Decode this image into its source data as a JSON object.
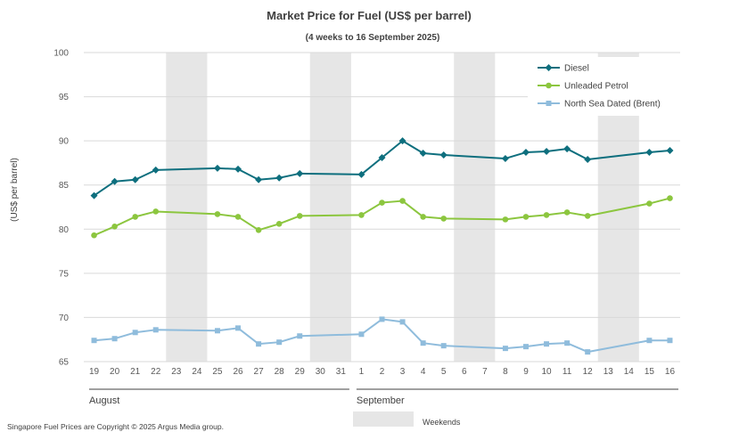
{
  "chart_data": {
    "type": "line",
    "title": "Market Price for Fuel (US$ per barrel)",
    "subtitle": "(4 weeks to 16 September 2025)",
    "ylabel": "(US$ per barrel)",
    "ylim": [
      65,
      100
    ],
    "yticks": [
      65,
      70,
      75,
      80,
      85,
      90,
      95,
      100
    ],
    "grid": true,
    "legend_position": "top-right",
    "categories": [
      "19",
      "20",
      "21",
      "22",
      "23",
      "24",
      "25",
      "26",
      "27",
      "28",
      "29",
      "30",
      "31",
      "1",
      "2",
      "3",
      "4",
      "5",
      "6",
      "7",
      "8",
      "9",
      "10",
      "11",
      "12",
      "13",
      "14",
      "15",
      "16"
    ],
    "months": [
      {
        "label": "August",
        "from": 0,
        "to": 12
      },
      {
        "label": "September",
        "from": 13,
        "to": 28
      }
    ],
    "weekend_bands": [
      [
        4,
        5
      ],
      [
        11,
        12
      ],
      [
        18,
        19
      ],
      [
        25,
        26
      ]
    ],
    "weekend_label": "Weekends",
    "series": [
      {
        "name": "Diesel",
        "color": "#0e6f7e",
        "marker": "diamond",
        "values": [
          83.8,
          85.4,
          85.6,
          86.7,
          null,
          null,
          86.9,
          86.8,
          85.6,
          85.8,
          86.3,
          null,
          null,
          86.2,
          88.1,
          90.0,
          88.6,
          88.4,
          null,
          null,
          88.0,
          88.7,
          88.8,
          89.1,
          87.9,
          null,
          null,
          88.7,
          88.9
        ]
      },
      {
        "name": "Unleaded Petrol",
        "color": "#8cc63f",
        "marker": "circle",
        "values": [
          79.3,
          80.3,
          81.4,
          82.0,
          null,
          null,
          81.7,
          81.4,
          79.9,
          80.6,
          81.5,
          null,
          null,
          81.6,
          83.0,
          83.2,
          81.4,
          81.2,
          null,
          null,
          81.1,
          81.4,
          81.6,
          81.9,
          81.5,
          null,
          null,
          82.9,
          83.5
        ]
      },
      {
        "name": "North Sea Dated (Brent)",
        "color": "#8fbcdc",
        "marker": "square",
        "values": [
          67.4,
          67.6,
          68.3,
          68.6,
          null,
          null,
          68.5,
          68.8,
          67.0,
          67.2,
          67.9,
          null,
          null,
          68.1,
          69.8,
          69.5,
          67.1,
          66.8,
          null,
          null,
          66.5,
          66.7,
          67.0,
          67.1,
          66.1,
          null,
          null,
          67.4,
          67.4
        ]
      }
    ],
    "footer": "Singapore Fuel Prices are Copyright © 2025 Argus Media group."
  }
}
